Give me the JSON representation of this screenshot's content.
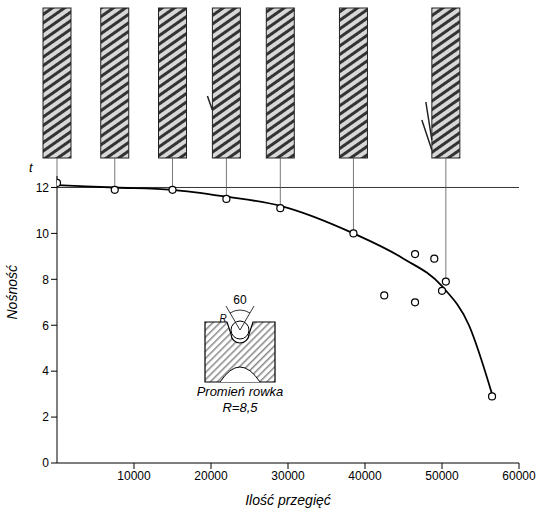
{
  "chart_data": {
    "type": "line",
    "x_label": "Ilość przegięć",
    "y_label": "Nośność",
    "y_unit": "t",
    "xlim": [
      0,
      60000
    ],
    "xticks": [
      10000,
      20000,
      30000,
      40000,
      50000,
      60000
    ],
    "ylim": [
      0,
      12.5
    ],
    "yticks": [
      0,
      2,
      4,
      6,
      8,
      10,
      12
    ],
    "grid": false,
    "reference_y": 12,
    "series": [
      {
        "type": "line",
        "line_style": "solid",
        "color": "#000000",
        "x": [
          0,
          7500,
          15000,
          22000,
          29000,
          38500,
          45000,
          50000,
          53500,
          56500
        ],
        "values": [
          12.1,
          12.0,
          11.9,
          11.6,
          11.2,
          10.0,
          8.9,
          7.7,
          6.0,
          3.0
        ]
      },
      {
        "type": "scatter",
        "marker": "circle",
        "color": "#000000",
        "x": [
          0,
          7500,
          15000,
          22000,
          29000,
          38500,
          42500,
          46500,
          46500,
          49000,
          50000,
          50500,
          56500
        ],
        "values": [
          12.2,
          11.9,
          11.9,
          11.5,
          11.1,
          10.0,
          7.3,
          9.1,
          7.0,
          8.9,
          7.5,
          7.9,
          2.9
        ]
      }
    ],
    "ropes": {
      "x": [
        0,
        7500,
        15000,
        22000,
        29000,
        38500,
        50500
      ],
      "y": [
        12.2,
        11.9,
        11.9,
        11.5,
        11.1,
        10.0,
        7.9
      ]
    },
    "inset": {
      "angle_label": "60",
      "radius_label": "R",
      "caption": "Promień rowka",
      "value_label": "R=8,5"
    }
  }
}
